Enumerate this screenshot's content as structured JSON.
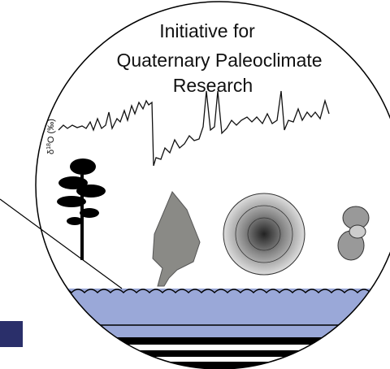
{
  "title_lines": [
    "Initiative for",
    "Quaternary Paleoclimate",
    "Research"
  ],
  "axis_label": {
    "symbol": "δ",
    "superscript": "18",
    "rest": "O (‰)"
  }
}
